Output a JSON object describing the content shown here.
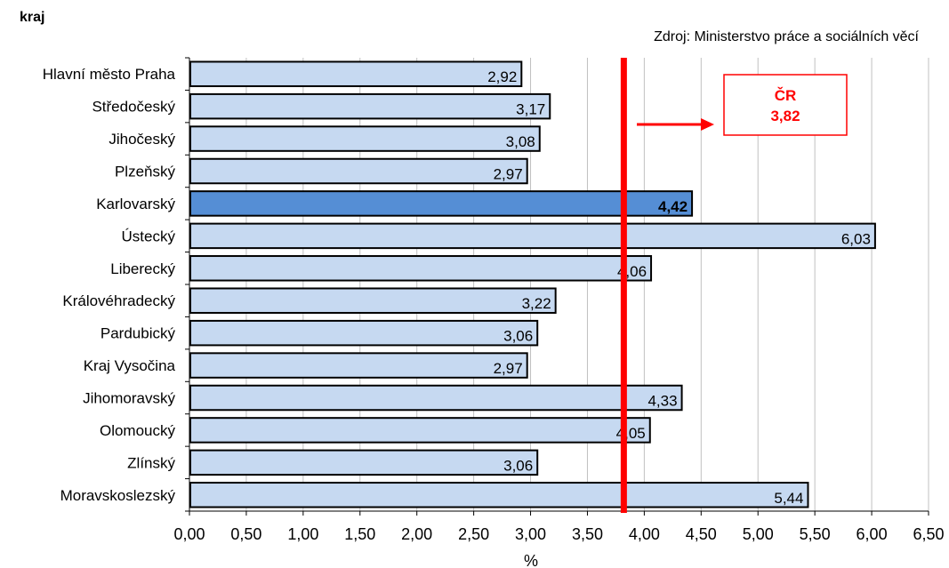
{
  "chart_data": {
    "type": "bar",
    "orientation": "horizontal",
    "title": "",
    "ylabel": "kraj",
    "xlabel": "%",
    "source": "Zdroj: Ministerstvo práce a sociálních věcí",
    "categories": [
      "Hlavní město Praha",
      "Středočeský",
      "Jihočeský",
      "Plzeňský",
      "Karlovarský",
      "Ústecký",
      "Liberecký",
      "Královéhradecký",
      "Pardubický",
      "Kraj Vysočina",
      "Jihomoravský",
      "Olomoucký",
      "Zlínský",
      "Moravskoslezský"
    ],
    "values": [
      2.92,
      3.17,
      3.08,
      2.97,
      4.42,
      6.03,
      4.06,
      3.22,
      3.06,
      2.97,
      4.33,
      4.05,
      3.06,
      5.44
    ],
    "value_labels": [
      "2,92",
      "3,17",
      "3,08",
      "2,97",
      "4,42",
      "6,03",
      "4,06",
      "3,22",
      "3,06",
      "2,97",
      "4,33",
      "4,05",
      "3,06",
      "5,44"
    ],
    "highlight_category": "Karlovarský",
    "xlim": [
      0,
      6.5
    ],
    "xticks": [
      0,
      0.5,
      1,
      1.5,
      2,
      2.5,
      3,
      3.5,
      4,
      4.5,
      5,
      5.5,
      6,
      6.5
    ],
    "xtick_labels": [
      "0,00",
      "0,50",
      "1,00",
      "1,50",
      "2,00",
      "2,50",
      "3,00",
      "3,50",
      "4,00",
      "4,50",
      "5,00",
      "5,50",
      "6,00",
      "6,50"
    ],
    "grid": "vertical",
    "reference_line": {
      "value": 3.82,
      "label_line1": "ČR",
      "label_line2": "3,82",
      "color": "#ff0000"
    },
    "colors": {
      "bar": "#c6d9f1",
      "highlight_bar": "#558ed5",
      "bar_edge": "#000000",
      "grid": "#c0c0c0",
      "reference": "#ff0000"
    }
  }
}
